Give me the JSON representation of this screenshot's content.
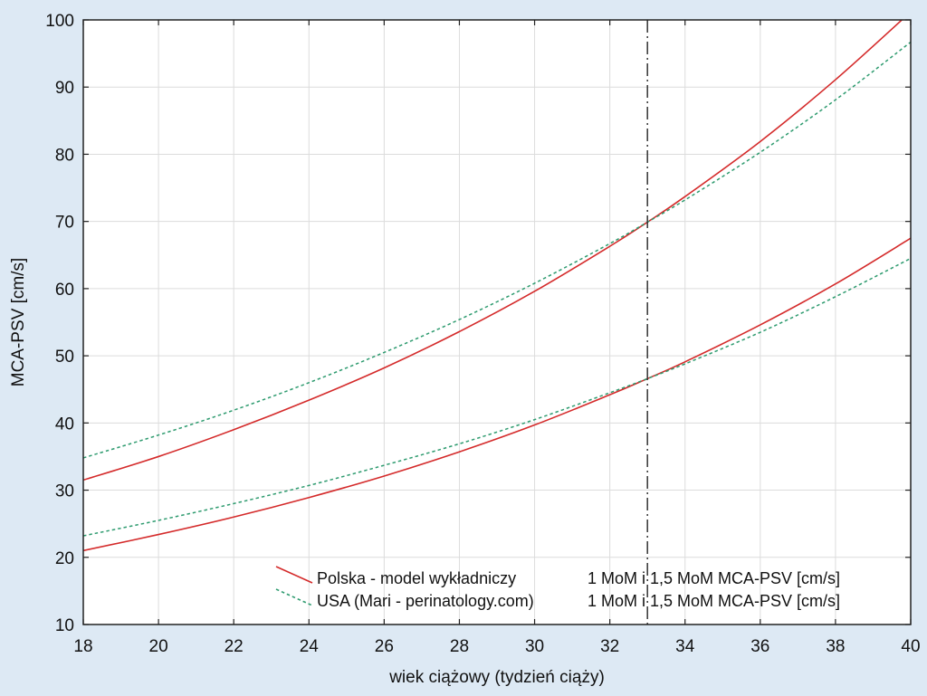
{
  "chart_data": {
    "type": "line",
    "title": "",
    "xlabel": "wiek ciążowy (tydzień ciąży)",
    "ylabel": "MCA-PSV [cm/s]",
    "xlim": [
      18,
      40
    ],
    "ylim": [
      10,
      100
    ],
    "xticks": [
      18,
      20,
      22,
      24,
      26,
      28,
      30,
      32,
      34,
      36,
      38,
      40
    ],
    "yticks": [
      10,
      20,
      30,
      40,
      50,
      60,
      70,
      80,
      90,
      100
    ],
    "grid": true,
    "legend_position": "bottom-right",
    "reference_line": {
      "x": 33,
      "style": "dash-dot"
    },
    "series": [
      {
        "name": "Polska - model wykładniczy",
        "legend_suffix": "1 MoM i 1,5 MoM MCA-PSV [cm/s]",
        "color": "#d42a2a",
        "dash": "solid",
        "curves": [
          {
            "x": [
              18,
              20,
              22,
              24,
              26,
              28,
              30,
              32,
              33,
              34,
              36,
              38,
              40
            ],
            "y": [
              21.0,
              23.4,
              26.0,
              28.9,
              32.1,
              35.7,
              39.7,
              44.2,
              46.6,
              49.1,
              54.6,
              60.7,
              67.5
            ]
          },
          {
            "x": [
              18,
              20,
              22,
              24,
              26,
              28,
              30,
              32,
              33,
              34,
              36,
              38,
              40
            ],
            "y": [
              31.5,
              35.0,
              39.0,
              43.4,
              48.2,
              53.6,
              59.6,
              66.3,
              69.9,
              73.7,
              81.9,
              91.1,
              101.2
            ]
          }
        ]
      },
      {
        "name": "USA (Mari - perinatology.com)",
        "legend_suffix": "1 MoM i 1,5 MoM MCA-PSV [cm/s]",
        "color": "#2e9b6f",
        "dash": "dashed",
        "curves": [
          {
            "x": [
              18,
              20,
              22,
              24,
              26,
              28,
              30,
              32,
              33,
              34,
              36,
              38,
              40
            ],
            "y": [
              23.2,
              25.5,
              28.0,
              30.7,
              33.7,
              36.9,
              40.5,
              44.5,
              46.6,
              48.8,
              53.5,
              58.8,
              64.5
            ]
          },
          {
            "x": [
              18,
              20,
              22,
              24,
              26,
              28,
              30,
              32,
              33,
              34,
              36,
              38,
              40
            ],
            "y": [
              34.8,
              38.2,
              41.9,
              46.0,
              50.5,
              55.4,
              60.8,
              66.7,
              69.9,
              73.2,
              80.3,
              88.1,
              96.7
            ]
          }
        ]
      }
    ]
  }
}
